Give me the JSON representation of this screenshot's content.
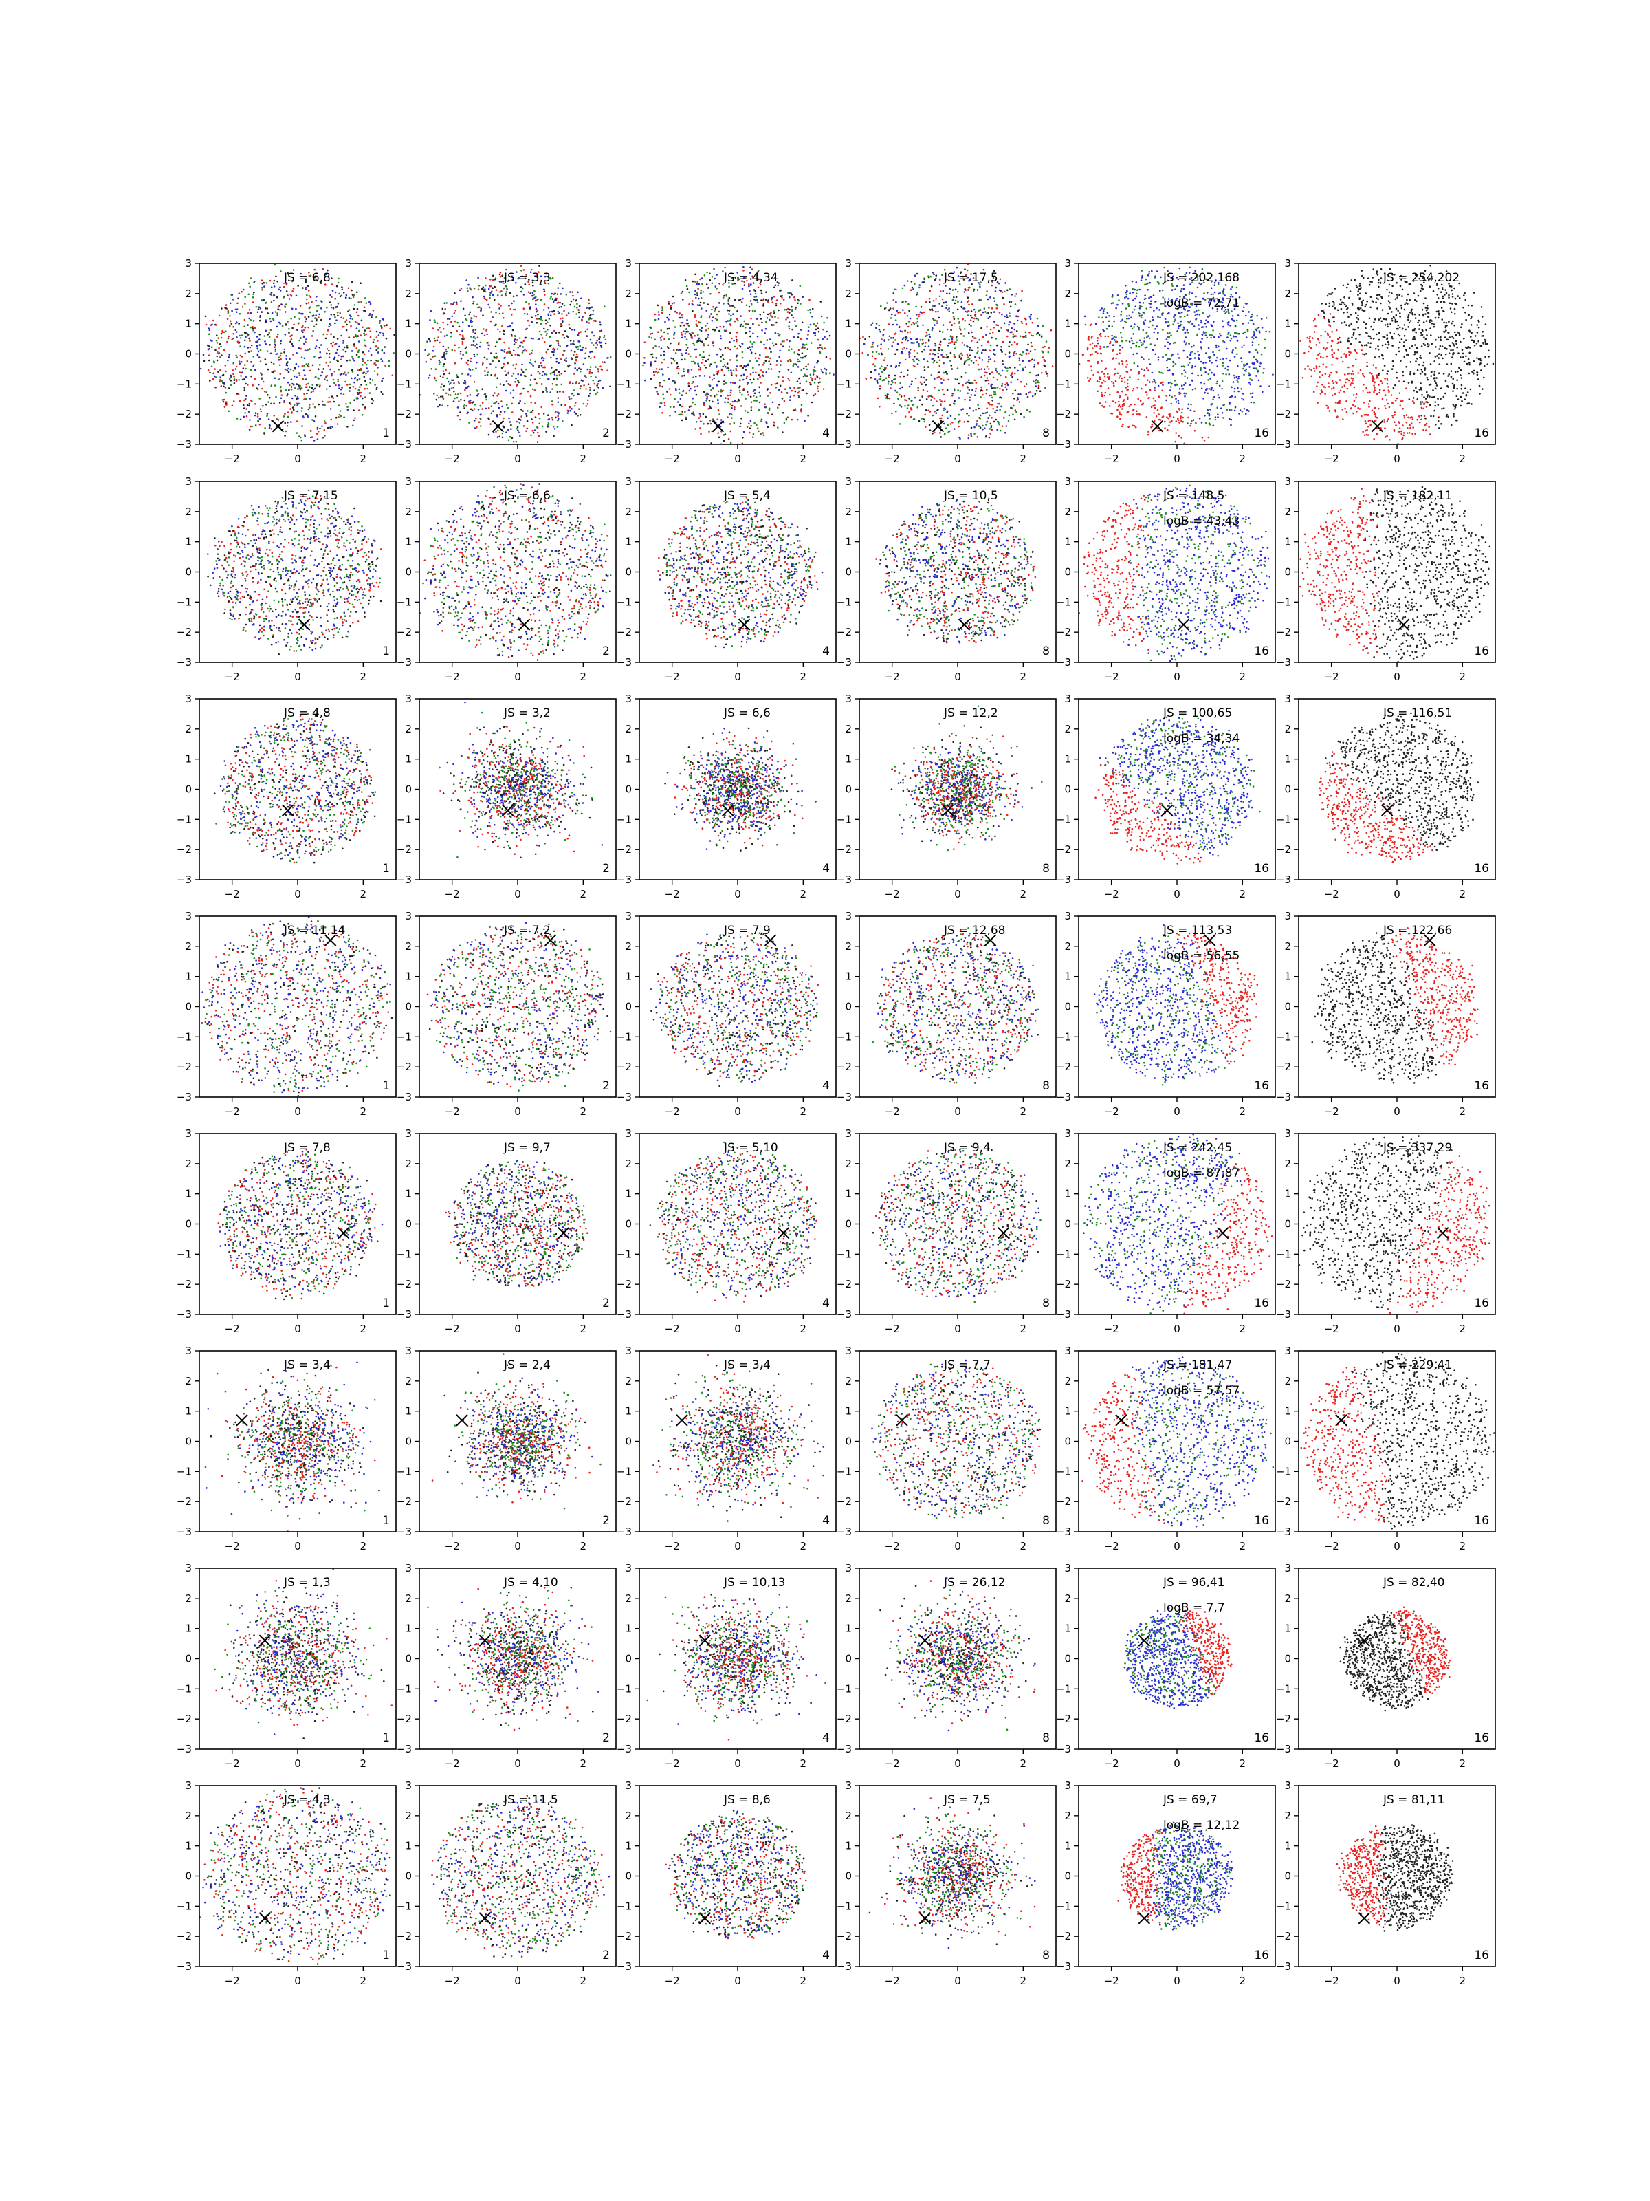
{
  "figure": {
    "colors": {
      "red": "#e8231f",
      "blue": "#2b2bd6",
      "green": "#1f8f1f",
      "black": "#222222",
      "marker": "#000000"
    },
    "marker_symbol": "×"
  },
  "chart_data": {
    "type": "scatter",
    "layout": "grid of 8 rows × 6 columns of scatter subplots",
    "xlim": [
      -3,
      3
    ],
    "ylim": [
      -3,
      3
    ],
    "xticks": [
      "−2",
      "0",
      "2"
    ],
    "yticks": [
      "3",
      "2",
      "1",
      "0",
      "−1",
      "−2",
      "−3"
    ],
    "grid": false,
    "columns": [
      {
        "corner_label": "1",
        "style": "mixed",
        "palette": [
          "red",
          "blue",
          "green",
          "black"
        ]
      },
      {
        "corner_label": "2",
        "style": "mixed",
        "palette": [
          "red",
          "blue",
          "green",
          "black"
        ]
      },
      {
        "corner_label": "4",
        "style": "mixed",
        "palette": [
          "red",
          "blue",
          "green",
          "black"
        ]
      },
      {
        "corner_label": "8",
        "style": "mixed",
        "palette": [
          "red",
          "blue",
          "green",
          "black"
        ]
      },
      {
        "corner_label": "16",
        "style": "separated",
        "palette": [
          "red",
          "blue",
          "green"
        ]
      },
      {
        "corner_label": "16",
        "style": "binary",
        "palette": [
          "red",
          "black"
        ]
      }
    ],
    "rows": [
      {
        "marker": [
          -0.6,
          -2.4
        ],
        "cloud_radius": [
          3.0,
          3.0,
          3.0,
          3.0,
          3.0,
          3.0
        ],
        "red_side_angle_deg": 225,
        "js": [
          "JS = 6,8",
          "JS = 3,3",
          "JS = 4,34",
          "JS = 17,5",
          "JS = 202,168",
          "JS = 254,202"
        ],
        "logB": "logB = 72,71"
      },
      {
        "marker": [
          0.2,
          -1.75
        ],
        "cloud_radius": [
          2.7,
          3.0,
          2.5,
          2.5,
          3.0,
          3.0
        ],
        "red_side_angle_deg": 180,
        "js": [
          "JS = 7,15",
          "JS = 6,6",
          "JS = 5,4",
          "JS = 10,5",
          "JS = 148,5",
          "JS = 182,11"
        ],
        "logB": "logB = 43,43"
      },
      {
        "marker": [
          -0.3,
          -0.7
        ],
        "cloud_radius": [
          2.5,
          1.8,
          1.6,
          1.6,
          2.5,
          2.5
        ],
        "red_side_angle_deg": 225,
        "js": [
          "JS = 4,8",
          "JS = 3,2",
          "JS = 6,6",
          "JS = 12,2",
          "JS = 100,65",
          "JS = 116,51"
        ],
        "logB": "logB = 34,34"
      },
      {
        "marker": [
          1.0,
          2.2
        ],
        "cloud_radius": [
          3.0,
          2.8,
          2.6,
          2.6,
          2.6,
          2.6
        ],
        "red_side_angle_deg": 20,
        "js": [
          "JS = 11,14",
          "JS = 7,2",
          "JS = 7,9",
          "JS = 12,68",
          "JS = 113,53",
          "JS = 122,66"
        ],
        "logB": "logB = 56,55"
      },
      {
        "marker": [
          1.4,
          -0.3
        ],
        "cloud_radius": [
          2.5,
          2.2,
          2.6,
          2.6,
          3.0,
          3.0
        ],
        "red_side_angle_deg": -20,
        "js": [
          "JS = 7,8",
          "JS = 9,7",
          "JS = 5,10",
          "JS = 9,4",
          "JS = 242,45",
          "JS = 337,29"
        ],
        "logB": "logB = 87,87"
      },
      {
        "marker": [
          -1.7,
          0.7
        ],
        "cloud_radius": [
          2.0,
          1.7,
          2.0,
          2.7,
          2.9,
          3.0
        ],
        "red_side_angle_deg": 190,
        "js": [
          "JS = 3,4",
          "JS = 2,4",
          "JS = 3,4",
          "JS = 7,7",
          "JS = 181,47",
          "JS = 229,41"
        ],
        "logB": "logB = 57,57"
      },
      {
        "marker": [
          -1.0,
          0.6
        ],
        "cloud_radius": [
          2.0,
          1.8,
          1.8,
          1.8,
          1.7,
          1.7
        ],
        "red_side_angle_deg": 20,
        "js": [
          "JS = 1,3",
          "JS = 4,10",
          "JS = 10,13",
          "JS = 26,12",
          "JS = 96,41",
          "JS = 82,40"
        ],
        "logB": "logB = 7,7"
      },
      {
        "marker": [
          -1.0,
          -1.4
        ],
        "cloud_radius": [
          3.0,
          2.7,
          2.2,
          1.8,
          1.8,
          1.8
        ],
        "red_side_angle_deg": 180,
        "js": [
          "JS = 4,3",
          "JS = 11,5",
          "JS = 8,6",
          "JS = 7,5",
          "JS = 69,7",
          "JS = 81,11"
        ],
        "logB": "logB = 12,12"
      }
    ]
  }
}
